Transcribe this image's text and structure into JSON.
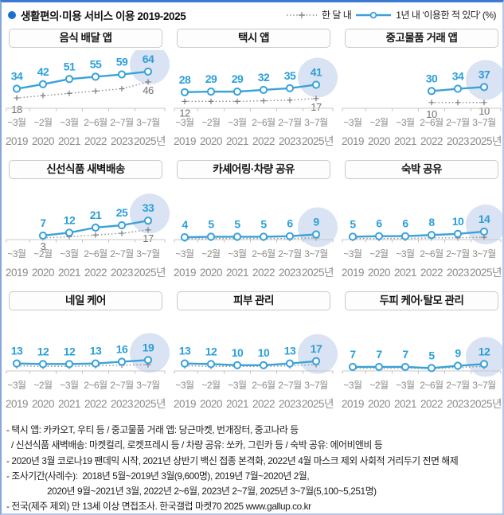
{
  "header": {
    "title": "생활편의·미용 서비스 이용 2019-2025",
    "legend_monthly": "한 달 내",
    "legend_yearly": "1년 내 ‘이용한 적 있다’ (%)"
  },
  "x_axis": {
    "months": [
      "~3월",
      "~2월",
      "~3월",
      "2~6월",
      "2~7월",
      "3~7월"
    ],
    "years": [
      "2019",
      "2020",
      "2021",
      "2022",
      "2023",
      "2025년"
    ]
  },
  "colors": {
    "line_blue": "#3aa2d9",
    "value_blue": "#2b9fd8",
    "highlight": "#d9e3f3",
    "dotted_gray": "#8f8f8f",
    "plus_gray": "#7f7f7f",
    "axis_gray": "#c8c8c8",
    "tick_gray": "#c0c0c0",
    "label_gray": "#8b8b8b",
    "monthly_label_gray": "#707070",
    "bullet_blue": "#1a6fd4"
  },
  "chart_data": [
    {
      "type": "line",
      "title": "음식 배달 앱",
      "start_index": 0,
      "series": [
        {
          "name": "1년 내 이용한 적 있다",
          "style": "solid-blue",
          "values": [
            34,
            42,
            51,
            55,
            59,
            64
          ],
          "all_labeled": true
        },
        {
          "name": "한 달 내 이용한 적 있다",
          "style": "dotted-gray",
          "values": [
            18,
            22,
            26,
            30,
            34,
            46
          ],
          "shown_labels": {
            "first": "18",
            "last": "46"
          },
          "intermediate_estimated": true
        }
      ]
    },
    {
      "type": "line",
      "title": "택시 앱",
      "start_index": 0,
      "series": [
        {
          "name": "1년 내 이용한 적 있다",
          "style": "solid-blue",
          "values": [
            28,
            29,
            29,
            32,
            35,
            41
          ],
          "all_labeled": true
        },
        {
          "name": "한 달 내 이용한 적 있다",
          "style": "dotted-gray",
          "values": [
            12,
            12,
            12,
            13,
            14,
            17
          ],
          "shown_labels": {
            "first": "12",
            "last": "17"
          },
          "intermediate_estimated": true
        }
      ]
    },
    {
      "type": "line",
      "title": "중고물품 거래 앱",
      "start_index": 3,
      "series": [
        {
          "name": "1년 내 이용한 적 있다",
          "style": "solid-blue",
          "values": [
            30,
            34,
            37
          ],
          "all_labeled": true
        },
        {
          "name": "한 달 내 이용한 적 있다",
          "style": "dotted-gray",
          "values": [
            10,
            10,
            10
          ],
          "shown_labels": {
            "first": "10",
            "last": "10"
          },
          "intermediate_estimated": true
        }
      ]
    },
    {
      "type": "line",
      "title": "신선식품 새벽배송",
      "start_index": 1,
      "series": [
        {
          "name": "1년 내 이용한 적 있다",
          "style": "solid-blue",
          "values": [
            7,
            12,
            21,
            25,
            33
          ],
          "all_labeled": true
        },
        {
          "name": "한 달 내 이용한 적 있다",
          "style": "dotted-gray",
          "values": [
            3,
            5,
            8,
            11,
            17
          ],
          "shown_labels": {
            "first": "3",
            "last": "17"
          },
          "intermediate_estimated": true
        }
      ]
    },
    {
      "type": "line",
      "title": "카셰어링·차량 공유",
      "start_index": 0,
      "series": [
        {
          "name": "1년 내 이용한 적 있다",
          "style": "solid-blue",
          "values": [
            4,
            5,
            5,
            5,
            6,
            9
          ],
          "all_labeled": true
        },
        {
          "name": "한 달 내 이용한 적 있다",
          "style": "dotted-gray",
          "values": [
            1,
            2,
            2,
            2,
            2,
            3
          ],
          "shown_labels": null,
          "intermediate_estimated": true
        }
      ]
    },
    {
      "type": "line",
      "title": "숙박 공유",
      "start_index": 0,
      "series": [
        {
          "name": "1년 내 이용한 적 있다",
          "style": "solid-blue",
          "values": [
            5,
            6,
            6,
            8,
            10,
            14
          ],
          "all_labeled": true
        },
        {
          "name": "한 달 내 이용한 적 있다",
          "style": "dotted-gray",
          "values": [
            2,
            2,
            2,
            3,
            3,
            4
          ],
          "shown_labels": null,
          "intermediate_estimated": true
        }
      ]
    },
    {
      "type": "line",
      "title": "네일 케어",
      "start_index": 0,
      "series": [
        {
          "name": "1년 내 이용한 적 있다",
          "style": "solid-blue",
          "values": [
            13,
            12,
            12,
            13,
            16,
            19
          ],
          "all_labeled": true
        },
        {
          "name": "한 달 내 이용한 적 있다",
          "style": "dotted-gray",
          "values": [
            9,
            8,
            8,
            9,
            10,
            11
          ],
          "shown_labels": null,
          "intermediate_estimated": true
        }
      ]
    },
    {
      "type": "line",
      "title": "피부 관리",
      "start_index": 0,
      "series": [
        {
          "name": "1년 내 이용한 적 있다",
          "style": "solid-blue",
          "values": [
            13,
            12,
            10,
            10,
            13,
            17
          ],
          "all_labeled": true
        },
        {
          "name": "한 달 내 이용한 적 있다",
          "style": "dotted-gray",
          "values": [
            9,
            8,
            8,
            8,
            9,
            11
          ],
          "shown_labels": null,
          "intermediate_estimated": true
        }
      ]
    },
    {
      "type": "line",
      "title": "두피 케어·탈모 관리",
      "start_index": 0,
      "series": [
        {
          "name": "1년 내 이용한 적 있다",
          "style": "solid-blue",
          "values": [
            7,
            7,
            7,
            5,
            9,
            12
          ],
          "all_labeled": true
        },
        {
          "name": "한 달 내 이용한 적 있다",
          "style": "dotted-gray",
          "values": [
            5,
            5,
            5,
            4,
            6,
            8
          ],
          "shown_labels": null,
          "intermediate_estimated": true
        }
      ]
    }
  ],
  "footnotes": [
    {
      "indent": 0,
      "text": "- 택시 앱: 카카오T, 우티 등 / 중고물품 거래 앱: 당근마켓, 번개장터, 중고나라 등"
    },
    {
      "indent": 1,
      "text": "/ 신선식품 새벽배송: 마켓컬리, 로켓프레시 등 / 차량 공유: 쏘카, 그린카 등 / 숙박 공유: 에어비앤비 등"
    },
    {
      "indent": 0,
      "text": "- 2020년 3월 코로나19 팬데믹 시작, 2021년 상반기 백신 접종 본격화, 2022년 4월 마스크 제외 사회적 거리두기 전면 해제"
    },
    {
      "indent": 0,
      "text": "- 조사기간(사례수):  2018년 5월~2019년 3월(9,600명), 2019년 7월~2020년 2월,"
    },
    {
      "indent": 2,
      "text": "2020년 9월~2021년 3월, 2022년 2~6월, 2023년 2~7월, 2025년 3~7월(5,100~5,251명)"
    },
    {
      "indent": 0,
      "text": "- 전국(제주 제외) 만 13세 이상 면접조사. 한국갤럽 마켓70 2025 www.gallup.co.kr"
    }
  ]
}
